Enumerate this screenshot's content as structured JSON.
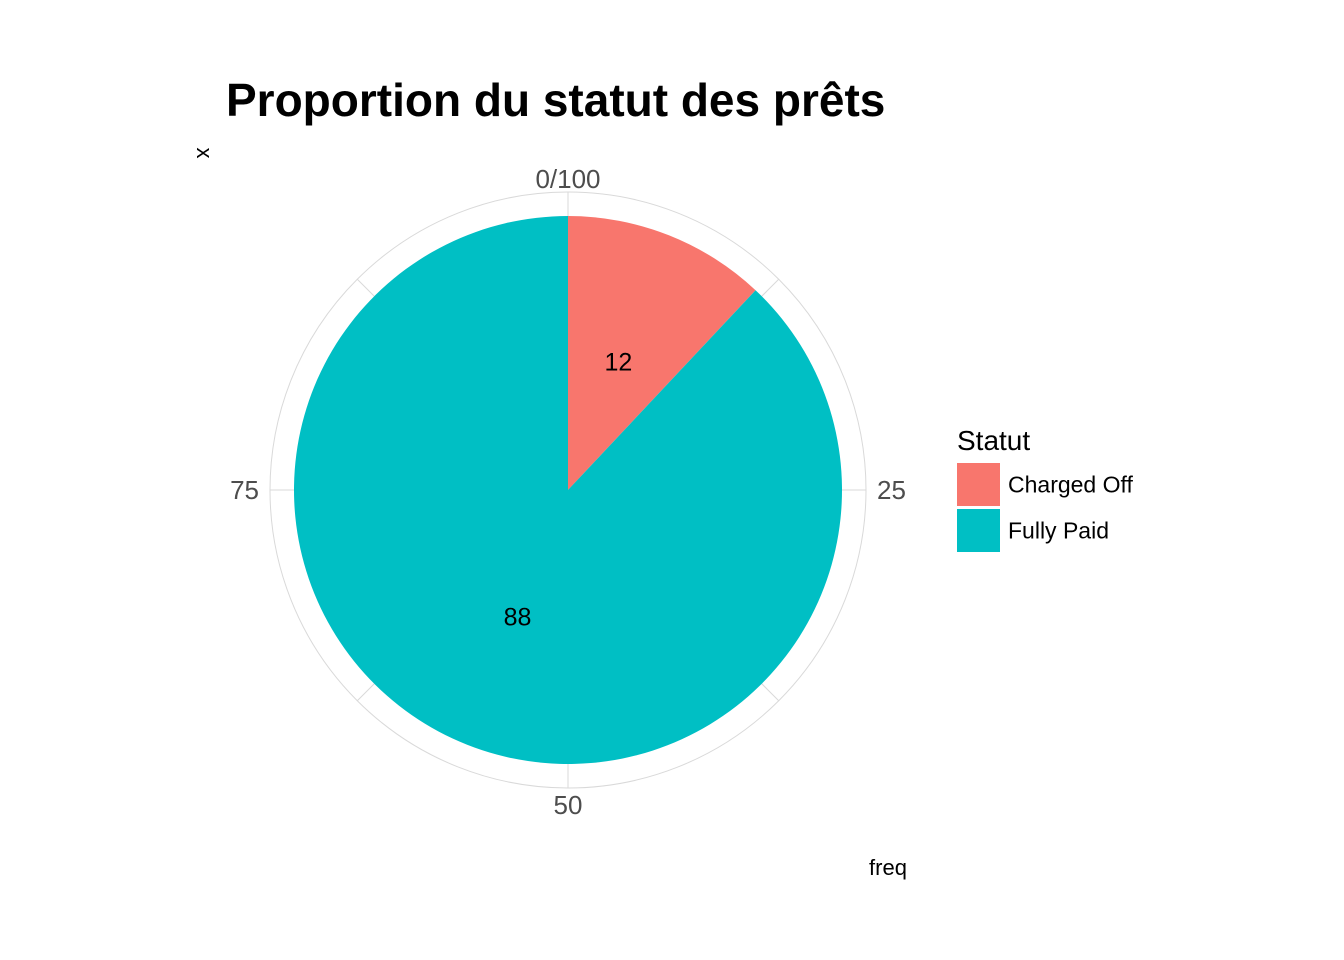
{
  "chart_data": {
    "type": "pie",
    "title": "Proportion du statut des prêts",
    "xlabel": "x",
    "ylabel": "freq",
    "angle_axis": {
      "range": [
        0,
        100
      ],
      "ticks": [
        "0/100",
        "25",
        "50",
        "75"
      ],
      "tick_values": [
        0,
        25,
        50,
        75
      ]
    },
    "grid": true,
    "categories": [
      "Charged Off",
      "Fully Paid"
    ],
    "values": [
      12,
      88
    ],
    "data_labels": [
      "12",
      "88"
    ],
    "colors": [
      "#f8766d",
      "#00bfc4"
    ],
    "legend": {
      "title": "Statut",
      "position": "right",
      "items": [
        "Charged Off",
        "Fully Paid"
      ]
    }
  }
}
